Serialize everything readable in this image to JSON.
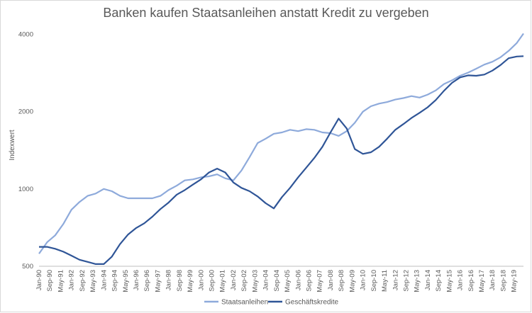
{
  "chart_data": {
    "type": "line",
    "title": "Banken kaufen Staatsanleihen anstatt Kredit zu vergeben",
    "xlabel": "",
    "ylabel": "Indexwert",
    "y_scale": "log",
    "ylim": [
      500,
      4500
    ],
    "yticks": [
      500,
      1000,
      2000,
      4000
    ],
    "ytick_labels": [
      "500",
      "1000",
      "2000",
      "4000"
    ],
    "x_range": [
      "Jan-90",
      "Dec-19"
    ],
    "x_tick_labels": [
      "Jan-90",
      "Sep-90",
      "May-91",
      "Jan-92",
      "Sep-92",
      "May-93",
      "Jan-94",
      "Sep-94",
      "May-95",
      "Jan-96",
      "Sep-96",
      "May-97",
      "Jan-98",
      "Sep-98",
      "May-99",
      "Jan-00",
      "Sep-00",
      "May-01",
      "Jan-02",
      "Sep-02",
      "May-03",
      "Jan-04",
      "Sep-04",
      "May-05",
      "Jan-06",
      "Sep-06",
      "May-07",
      "Jan-08",
      "Sep-08",
      "May-09",
      "Jan-10",
      "Sep-10",
      "May-11",
      "Jan-12",
      "Sep-12",
      "May-13",
      "Jan-14",
      "Sep-14",
      "May-15",
      "Jan-16",
      "Sep-16",
      "May-17",
      "Jan-18",
      "Sep-18",
      "May-19"
    ],
    "legend_position": "bottom",
    "grid": false,
    "series": [
      {
        "name": "Staatsanleihen",
        "color": "#8eaadb",
        "x": [
          "Jan-90",
          "Jul-90",
          "Jan-91",
          "Jul-91",
          "Jan-92",
          "Jul-92",
          "Jan-93",
          "Jul-93",
          "Jan-94",
          "Jul-94",
          "Jan-95",
          "Jul-95",
          "Jan-96",
          "Jul-96",
          "Jan-97",
          "Jul-97",
          "Jan-98",
          "Jul-98",
          "Jan-99",
          "Jul-99",
          "Jan-00",
          "Jul-00",
          "Jan-01",
          "Jul-01",
          "Jan-02",
          "Jul-02",
          "Jan-03",
          "Jul-03",
          "Jan-04",
          "Jul-04",
          "Jan-05",
          "Jul-05",
          "Jan-06",
          "Jul-06",
          "Jan-07",
          "Jul-07",
          "Jan-08",
          "Jul-08",
          "Jan-09",
          "Jul-09",
          "Jan-10",
          "Jul-10",
          "Jan-11",
          "Jul-11",
          "Jan-12",
          "Jul-12",
          "Jan-13",
          "Jul-13",
          "Jan-14",
          "Jul-14",
          "Jan-15",
          "Jul-15",
          "Jan-16",
          "Jul-16",
          "Jan-17",
          "Jul-17",
          "Jan-18",
          "Jul-18",
          "Jan-19",
          "Jul-19",
          "Dec-19"
        ],
        "values": [
          560,
          620,
          660,
          730,
          830,
          890,
          940,
          960,
          1000,
          980,
          940,
          920,
          920,
          920,
          920,
          940,
          990,
          1030,
          1080,
          1090,
          1110,
          1120,
          1140,
          1100,
          1080,
          1180,
          1330,
          1510,
          1570,
          1640,
          1660,
          1700,
          1680,
          1710,
          1700,
          1660,
          1650,
          1610,
          1680,
          1810,
          2000,
          2100,
          2150,
          2180,
          2230,
          2260,
          2300,
          2270,
          2330,
          2420,
          2560,
          2650,
          2760,
          2840,
          2940,
          3050,
          3130,
          3260,
          3450,
          3700,
          4030
        ]
      },
      {
        "name": "Geschäftskredite",
        "color": "#2f5597",
        "x": [
          "Jan-90",
          "Jul-90",
          "Jan-91",
          "Jul-91",
          "Jan-92",
          "Jul-92",
          "Jan-93",
          "Jul-93",
          "Jan-94",
          "Jul-94",
          "Jan-95",
          "Jul-95",
          "Jan-96",
          "Jul-96",
          "Jan-97",
          "Jul-97",
          "Jan-98",
          "Jul-98",
          "Jan-99",
          "Jul-99",
          "Jan-00",
          "Jul-00",
          "Jan-01",
          "Jul-01",
          "Jan-02",
          "Jul-02",
          "Jan-03",
          "Jul-03",
          "Jan-04",
          "Jul-04",
          "Jan-05",
          "Jul-05",
          "Jan-06",
          "Jul-06",
          "Jan-07",
          "Jul-07",
          "Jan-08",
          "Jul-08",
          "Jan-09",
          "Jul-09",
          "Jan-10",
          "Jul-10",
          "Jan-11",
          "Jul-11",
          "Jan-12",
          "Jul-12",
          "Jan-13",
          "Jul-13",
          "Jan-14",
          "Jul-14",
          "Jan-15",
          "Jul-15",
          "Jan-16",
          "Jul-16",
          "Jan-17",
          "Jul-17",
          "Jan-18",
          "Jul-18",
          "Jan-19",
          "Jul-19",
          "Dec-19"
        ],
        "values": [
          595,
          595,
          585,
          570,
          550,
          530,
          520,
          510,
          510,
          545,
          610,
          665,
          705,
          735,
          780,
          835,
          885,
          950,
          990,
          1040,
          1090,
          1160,
          1200,
          1160,
          1060,
          1010,
          980,
          935,
          880,
          840,
          930,
          1010,
          1110,
          1210,
          1320,
          1460,
          1660,
          1880,
          1720,
          1430,
          1370,
          1390,
          1460,
          1570,
          1700,
          1790,
          1890,
          1980,
          2080,
          2220,
          2410,
          2590,
          2720,
          2770,
          2760,
          2790,
          2890,
          3040,
          3230,
          3280,
          3290
        ]
      }
    ]
  }
}
